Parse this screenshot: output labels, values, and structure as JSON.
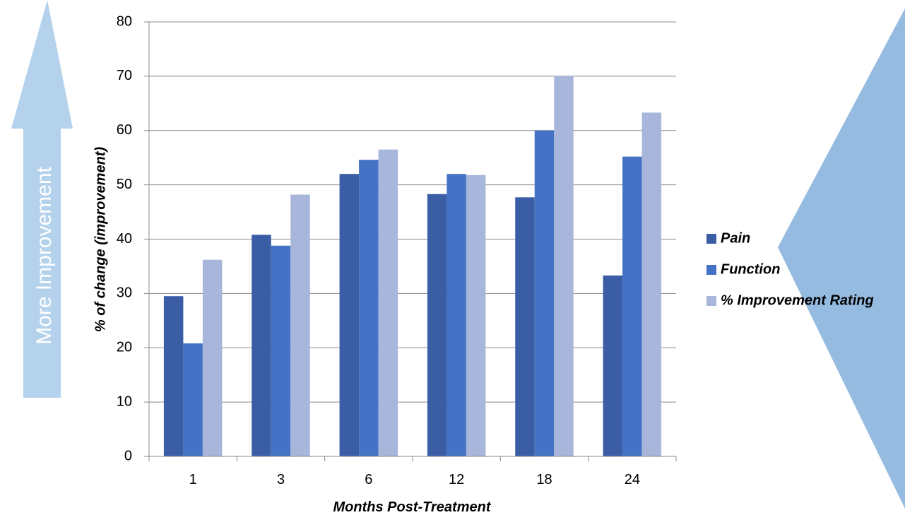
{
  "side_arrow": {
    "label": "More Improvement",
    "color": "#B4D2EC"
  },
  "right_shape": {
    "color": "#95BBE1"
  },
  "chart_data": {
    "type": "bar",
    "title": "",
    "xlabel": "Months Post-Treatment",
    "ylabel": "% of change (improvement)",
    "categories": [
      "1",
      "3",
      "6",
      "12",
      "18",
      "24"
    ],
    "ylim": [
      0,
      80
    ],
    "yticks": [
      0,
      10,
      20,
      30,
      40,
      50,
      60,
      70,
      80
    ],
    "grid": true,
    "legend_position": "right",
    "series": [
      {
        "name": "Pain",
        "color": "#3A5DA6",
        "values": [
          29.5,
          40.8,
          52.0,
          48.3,
          47.7,
          33.3
        ]
      },
      {
        "name": "Function",
        "color": "#4472C4",
        "values": [
          20.8,
          38.8,
          54.6,
          52.0,
          60.0,
          55.2
        ]
      },
      {
        "name": "% Improvement Rating",
        "color": "#A8B6DC",
        "values": [
          36.2,
          48.2,
          56.5,
          51.8,
          70.0,
          63.3
        ]
      }
    ]
  }
}
